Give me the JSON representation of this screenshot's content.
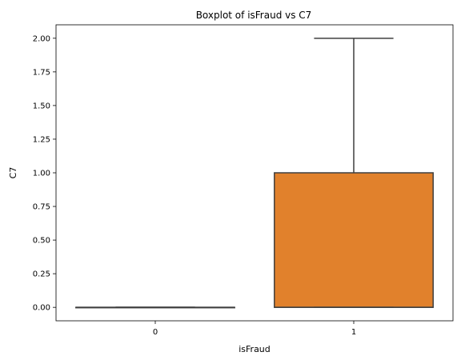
{
  "chart_data": {
    "type": "boxplot",
    "title": "Boxplot of isFraud vs C7",
    "xlabel": "isFraud",
    "ylabel": "C7",
    "categories": [
      "0",
      "1"
    ],
    "boxes": [
      {
        "category": "0",
        "min": 0.0,
        "q1": 0.0,
        "median": 0.0,
        "q3": 0.0,
        "max": 0.0,
        "color": "#3274a1"
      },
      {
        "category": "1",
        "min": 0.0,
        "q1": 0.0,
        "median": 0.0,
        "q3": 1.0,
        "max": 2.0,
        "color": "#e1812c"
      }
    ],
    "ylim": [
      -0.1,
      2.1
    ],
    "yticks": [
      0.0,
      0.25,
      0.5,
      0.75,
      1.0,
      1.25,
      1.5,
      1.75,
      2.0
    ],
    "ytick_labels": [
      "0.00",
      "0.25",
      "0.50",
      "0.75",
      "1.00",
      "1.25",
      "1.50",
      "1.75",
      "2.00"
    ],
    "grid": false,
    "line_color": "#3f3f3f"
  }
}
